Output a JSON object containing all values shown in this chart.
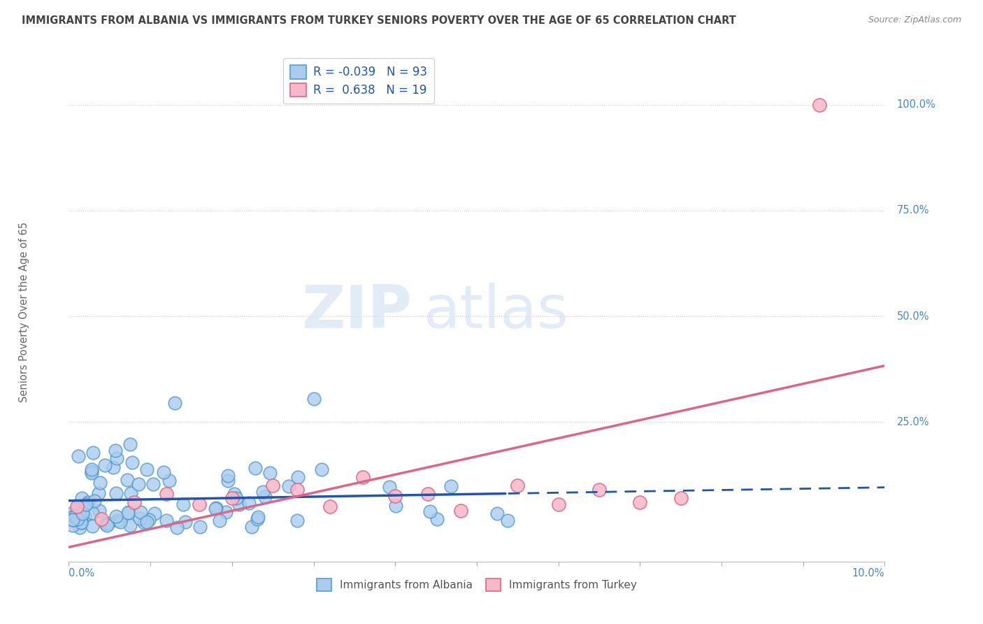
{
  "title": "IMMIGRANTS FROM ALBANIA VS IMMIGRANTS FROM TURKEY SENIORS POVERTY OVER THE AGE OF 65 CORRELATION CHART",
  "source": "Source: ZipAtlas.com",
  "ylabel": "Seniors Poverty Over the Age of 65",
  "watermark_zip": "ZIP",
  "watermark_atlas": "atlas",
  "legend_labels_top": [
    "R = -0.039   N = 93",
    "R =  0.638   N = 19"
  ],
  "legend_labels_bottom": [
    "Immigrants from Albania",
    "Immigrants from Turkey"
  ],
  "xlim": [
    0.0,
    0.1
  ],
  "ylim": [
    -0.08,
    1.1
  ],
  "albania_color": "#aaccee",
  "albania_edge": "#5599cc",
  "turkey_color": "#f5b8c8",
  "turkey_edge": "#dd6688",
  "reg_albania_color": "#2255aa",
  "reg_turkey_color": "#dd6688",
  "background_color": "#ffffff",
  "grid_color": "#cccccc",
  "axis_label_color": "#4488cc",
  "title_color": "#444444",
  "source_color": "#888888"
}
